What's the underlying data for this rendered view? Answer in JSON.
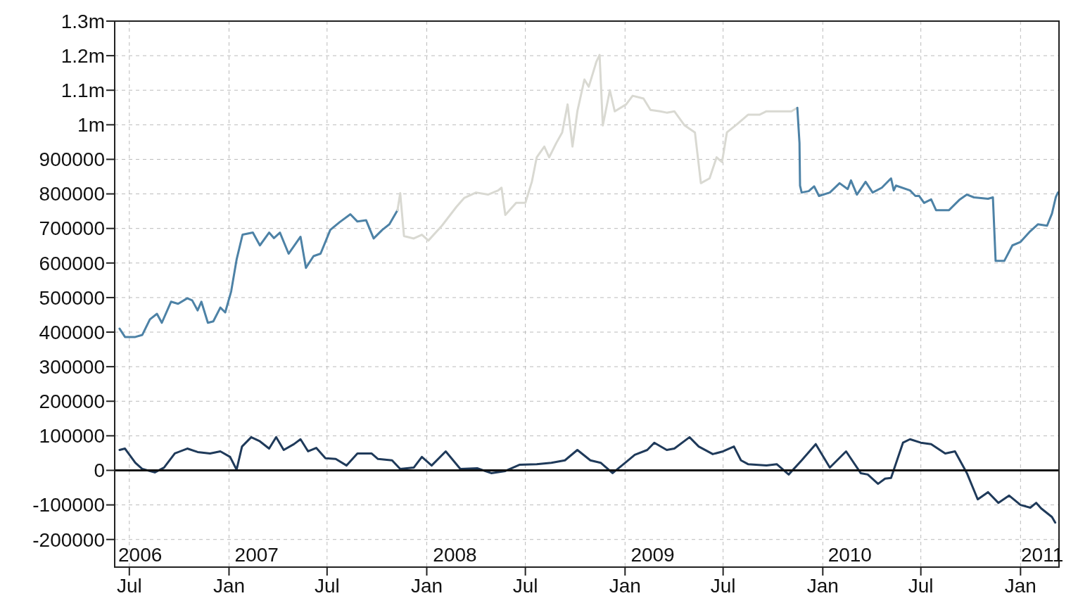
{
  "chart_data": {
    "type": "line",
    "grid": true,
    "line_style": "solid",
    "xlim": [
      "2006-06-04",
      "2011-03-13"
    ],
    "xticks": [
      {
        "value": "2006-07-01",
        "label": "Jul"
      },
      {
        "value": "2007-01-01",
        "label": "Jan"
      },
      {
        "value": "2007-07-01",
        "label": "Jul"
      },
      {
        "value": "2008-01-01",
        "label": "Jan"
      },
      {
        "value": "2008-07-01",
        "label": "Jul"
      },
      {
        "value": "2009-01-01",
        "label": "Jan"
      },
      {
        "value": "2009-07-01",
        "label": "Jul"
      },
      {
        "value": "2010-01-01",
        "label": "Jan"
      },
      {
        "value": "2010-07-01",
        "label": "Jul"
      },
      {
        "value": "2011-01-01",
        "label": "Jan"
      }
    ],
    "x2lim": [
      "2006-06-04",
      "2011-03-13"
    ],
    "x2ticks": [
      {
        "value": "2006-07-21",
        "label": "2006"
      },
      {
        "value": "2007-02-21",
        "label": "2007"
      },
      {
        "value": "2008-02-22",
        "label": "2008"
      },
      {
        "value": "2009-02-21",
        "label": "2009"
      },
      {
        "value": "2010-02-20",
        "label": "2010"
      },
      {
        "value": "2011-02-10",
        "label": "2011"
      }
    ],
    "ylim": [
      -280000,
      1300000
    ],
    "yticks": [
      -200000,
      -100000,
      0,
      100000,
      200000,
      300000,
      400000,
      500000,
      600000,
      700000,
      800000,
      900000,
      {
        "value": 1000000,
        "label": "1m"
      },
      {
        "value": 1100000,
        "label": "1.1m"
      },
      {
        "value": 1200000,
        "label": "1.2m"
      },
      {
        "value": 1300000,
        "label": "1.3m"
      }
    ],
    "ref_lines": [
      {
        "axis": "y",
        "value": 0,
        "color": "#111111"
      }
    ],
    "series": [
      {
        "color": "#4d82a6",
        "x": [
          "2006-06-13",
          "2006-06-23",
          "2006-07-12",
          "2006-07-25",
          "2006-08-08",
          "2006-08-21",
          "2006-08-30",
          "2006-09-16",
          "2006-09-29",
          "2006-10-16",
          "2006-10-25",
          "2006-11-04",
          "2006-11-11",
          "2006-11-23",
          "2006-12-03",
          "2006-12-16",
          "2006-12-25",
          "2007-01-05",
          "2007-01-15",
          "2007-01-26",
          "2007-02-14",
          "2007-02-27",
          "2007-03-16",
          "2007-03-25",
          "2007-04-05",
          "2007-04-21",
          "2007-05-13",
          "2007-05-23",
          "2007-06-06",
          "2007-06-19",
          "2007-07-07",
          "2007-07-24",
          "2007-08-13",
          "2007-08-26",
          "2007-09-11",
          "2007-09-25",
          "2007-10-11",
          "2007-10-24",
          "2007-11-08"
        ],
        "values": [
          410000,
          386000,
          386000,
          392000,
          437000,
          453000,
          427000,
          488000,
          482000,
          498000,
          492000,
          463000,
          488000,
          427000,
          431000,
          471000,
          457000,
          518000,
          610000,
          682000,
          688000,
          651000,
          688000,
          672000,
          688000,
          627000,
          676000,
          586000,
          620000,
          627000,
          696000,
          718000,
          741000,
          720000,
          724000,
          671000,
          696000,
          712000,
          753000
        ]
      },
      {
        "color": "#d9d9d2",
        "x": [
          "2007-11-08",
          "2007-11-13",
          "2007-11-20",
          "2007-12-08",
          "2007-12-23",
          "2008-01-04",
          "2008-01-29",
          "2008-02-25",
          "2008-03-10",
          "2008-04-01",
          "2008-04-23",
          "2008-05-12",
          "2008-05-18",
          "2008-05-25",
          "2008-06-14",
          "2008-07-01",
          "2008-07-13",
          "2008-07-22",
          "2008-08-05",
          "2008-08-14",
          "2008-08-27",
          "2008-09-07",
          "2008-09-17",
          "2008-09-26",
          "2008-10-05",
          "2008-10-18",
          "2008-10-26",
          "2008-11-09",
          "2008-11-15",
          "2008-11-21",
          "2008-12-04",
          "2008-12-13",
          "2009-01-03",
          "2009-01-15",
          "2009-02-04",
          "2009-02-17",
          "2009-03-07",
          "2009-03-19",
          "2009-04-02",
          "2009-04-21",
          "2009-05-10",
          "2009-05-21",
          "2009-06-06",
          "2009-06-19",
          "2009-06-29",
          "2009-07-08",
          "2009-07-27",
          "2009-08-16",
          "2009-09-06",
          "2009-09-19",
          "2009-10-14",
          "2009-11-04",
          "2009-11-15"
        ],
        "values": [
          753000,
          802000,
          678000,
          671000,
          682000,
          665000,
          708000,
          763000,
          788000,
          804000,
          798000,
          810000,
          818000,
          739000,
          774000,
          774000,
          835000,
          906000,
          937000,
          906000,
          947000,
          978000,
          1059000,
          937000,
          1039000,
          1131000,
          1110000,
          1182000,
          1202000,
          998000,
          1100000,
          1039000,
          1059000,
          1084000,
          1076000,
          1043000,
          1039000,
          1035000,
          1039000,
          998000,
          978000,
          831000,
          845000,
          906000,
          892000,
          978000,
          1002000,
          1029000,
          1029000,
          1039000,
          1039000,
          1039000,
          1049000
        ]
      },
      {
        "color": "#4d82a6",
        "x": [
          "2009-11-15",
          "2009-11-19",
          "2009-11-20",
          "2009-11-23",
          "2009-12-06",
          "2009-12-16",
          "2009-12-25",
          "2010-01-14",
          "2010-02-01",
          "2010-02-16",
          "2010-02-22",
          "2010-03-05",
          "2010-03-21",
          "2010-04-03",
          "2010-04-20",
          "2010-05-07",
          "2010-05-12",
          "2010-05-16",
          "2010-06-11",
          "2010-06-21",
          "2010-06-28",
          "2010-07-07",
          "2010-07-20",
          "2010-07-29",
          "2010-08-22",
          "2010-09-11",
          "2010-09-24",
          "2010-10-07",
          "2010-11-02",
          "2010-11-11",
          "2010-11-16",
          "2010-12-02",
          "2010-12-17",
          "2011-01-01",
          "2011-01-19",
          "2011-02-02",
          "2011-02-19",
          "2011-02-28",
          "2011-03-07",
          "2011-03-11"
        ],
        "values": [
          1049000,
          947000,
          824000,
          804000,
          808000,
          822000,
          794000,
          804000,
          831000,
          814000,
          839000,
          798000,
          835000,
          804000,
          818000,
          845000,
          810000,
          824000,
          810000,
          794000,
          794000,
          774000,
          784000,
          753000,
          753000,
          784000,
          798000,
          790000,
          786000,
          790000,
          606000,
          606000,
          651000,
          661000,
          692000,
          712000,
          708000,
          743000,
          790000,
          804000
        ]
      },
      {
        "color": "#1f3a5a",
        "x": [
          "2006-06-13",
          "2006-06-23",
          "2006-07-12",
          "2006-07-25",
          "2006-08-17",
          "2006-09-03",
          "2006-09-23",
          "2006-10-16",
          "2006-11-04",
          "2006-11-27",
          "2006-12-16",
          "2007-01-03",
          "2007-01-15",
          "2007-01-25",
          "2007-02-11",
          "2007-02-27",
          "2007-03-16",
          "2007-03-29",
          "2007-04-12",
          "2007-05-01",
          "2007-05-13",
          "2007-05-27",
          "2007-06-11",
          "2007-06-28",
          "2007-07-17",
          "2007-08-06",
          "2007-08-26",
          "2007-09-21",
          "2007-10-03",
          "2007-10-29",
          "2007-11-13",
          "2007-12-08",
          "2007-12-23",
          "2008-01-10",
          "2008-02-05",
          "2008-03-03",
          "2008-04-03",
          "2008-04-29",
          "2008-05-25",
          "2008-06-20",
          "2008-07-22",
          "2008-08-18",
          "2008-09-12",
          "2008-10-05",
          "2008-10-29",
          "2008-11-17",
          "2008-12-09",
          "2009-01-03",
          "2009-01-19",
          "2009-02-11",
          "2009-02-24",
          "2009-03-19",
          "2009-04-02",
          "2009-04-30",
          "2009-05-17",
          "2009-06-12",
          "2009-07-01",
          "2009-07-21",
          "2009-08-03",
          "2009-08-16",
          "2009-09-19",
          "2009-10-08",
          "2009-10-30",
          "2009-11-23",
          "2009-12-19",
          "2010-01-14",
          "2010-02-13",
          "2010-03-12",
          "2010-03-25",
          "2010-04-13",
          "2010-04-26",
          "2010-05-07",
          "2010-05-29",
          "2010-06-11",
          "2010-07-01",
          "2010-07-20",
          "2010-08-15",
          "2010-09-02",
          "2010-09-24",
          "2010-10-14",
          "2010-11-02",
          "2010-11-21",
          "2010-12-11",
          "2011-01-01",
          "2011-01-19",
          "2011-01-30",
          "2011-02-08",
          "2011-02-28",
          "2011-03-06"
        ],
        "values": [
          59000,
          63000,
          22000,
          4000,
          -6000,
          8000,
          49000,
          63000,
          53000,
          49000,
          55000,
          39000,
          2000,
          69000,
          96000,
          84000,
          63000,
          96000,
          59000,
          76000,
          90000,
          55000,
          65000,
          35000,
          33000,
          14000,
          49000,
          49000,
          33000,
          29000,
          4000,
          8000,
          39000,
          14000,
          55000,
          4000,
          6000,
          -8000,
          -2000,
          16000,
          18000,
          22000,
          29000,
          59000,
          29000,
          22000,
          -8000,
          24000,
          45000,
          59000,
          80000,
          59000,
          63000,
          96000,
          69000,
          47000,
          55000,
          69000,
          29000,
          18000,
          14000,
          18000,
          -12000,
          29000,
          76000,
          8000,
          55000,
          -8000,
          -12000,
          -39000,
          -24000,
          -22000,
          80000,
          90000,
          80000,
          76000,
          49000,
          55000,
          -8000,
          -84000,
          -63000,
          -94000,
          -73000,
          -100000,
          -108000,
          -94000,
          -110000,
          -135000,
          -151000
        ]
      }
    ]
  }
}
